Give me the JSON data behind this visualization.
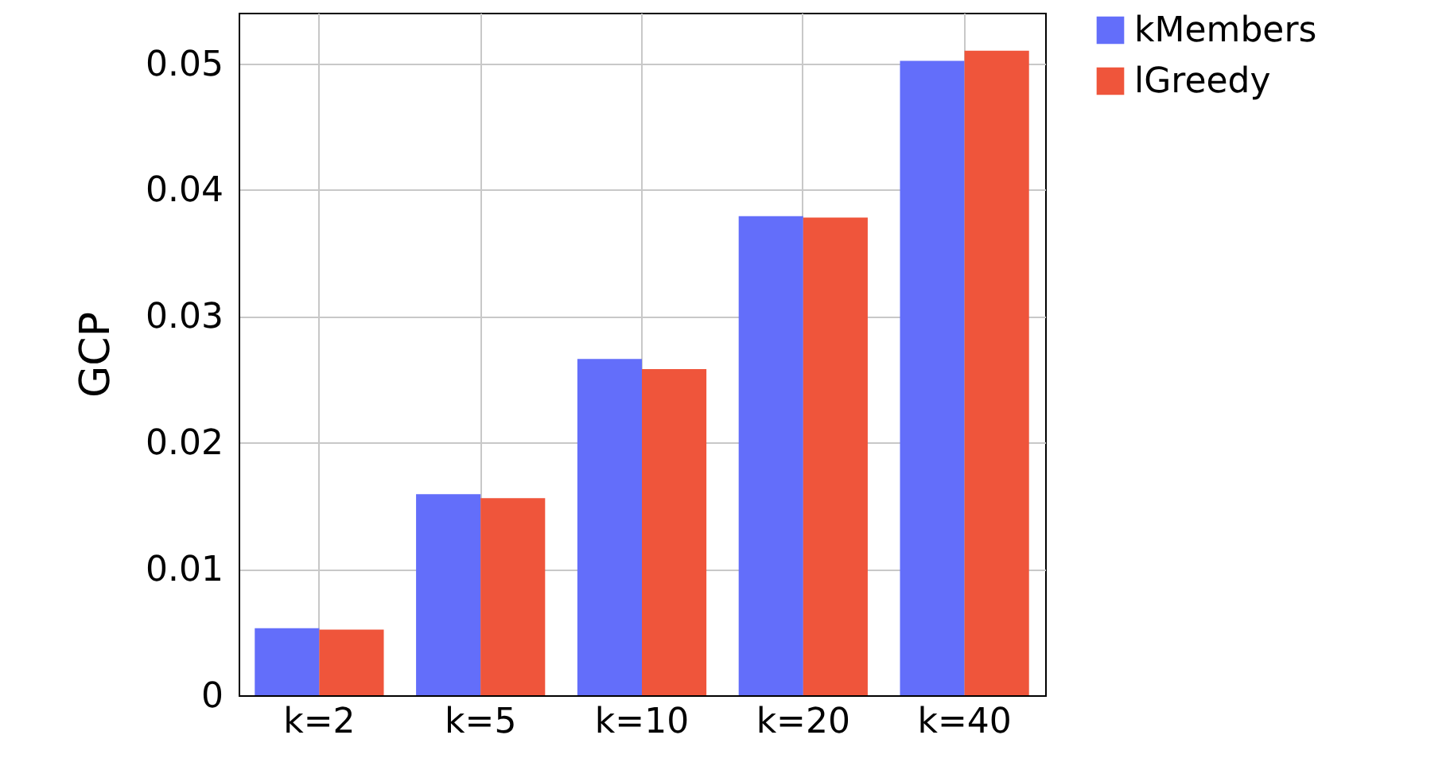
{
  "chart_data": {
    "type": "bar",
    "ylabel": "GCP",
    "categories": [
      "k=2",
      "k=5",
      "k=10",
      "k=20",
      "k=40"
    ],
    "series": [
      {
        "name": "kMembers",
        "color": "#636efa",
        "values": [
          0.0053,
          0.0159,
          0.0266,
          0.0379,
          0.0502
        ]
      },
      {
        "name": "lGreedy",
        "color": "#ef553b",
        "values": [
          0.0052,
          0.0156,
          0.0258,
          0.0378,
          0.051
        ]
      }
    ],
    "ylim": [
      0,
      0.054
    ],
    "yticks": [
      {
        "value": 0,
        "label": "0"
      },
      0.01,
      0.02,
      0.03,
      0.04,
      0.05
    ],
    "grid": true,
    "legend": "top right"
  }
}
